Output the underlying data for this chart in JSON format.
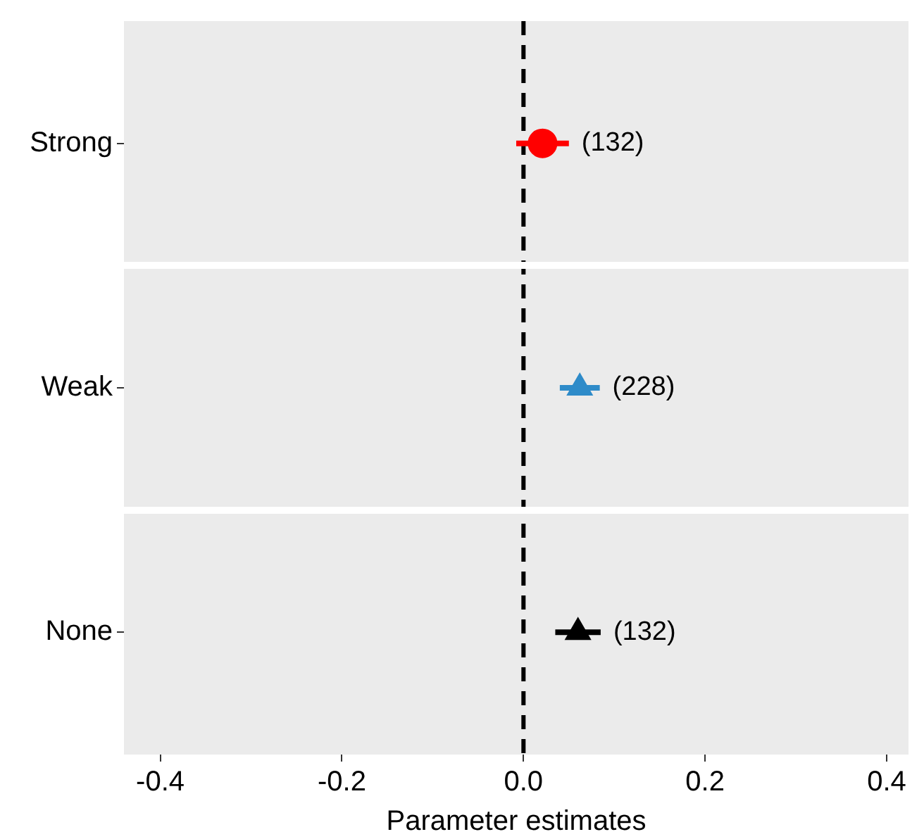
{
  "chart_data": {
    "type": "scatter",
    "orientation": "horizontal",
    "xlabel": "Parameter estimates",
    "categories": [
      "Strong",
      "Weak",
      "None"
    ],
    "series": [
      {
        "color": "#ff0000",
        "marker": "circle",
        "values": [
          0.021,
          null,
          null
        ],
        "errors": [
          [
            -0.008,
            0.05
          ],
          null,
          null
        ]
      },
      {
        "color": "#2e8bc9",
        "marker": "triangle",
        "values": [
          null,
          0.062,
          null
        ],
        "errors": [
          null,
          [
            0.04,
            0.084
          ],
          null
        ]
      },
      {
        "color": "#000000",
        "marker": "triangle",
        "values": [
          null,
          null,
          0.06
        ],
        "errors": [
          null,
          null,
          [
            0.035,
            0.085
          ]
        ]
      }
    ],
    "xlim": [
      -0.44,
      0.424
    ],
    "xticks": [
      {
        "value": -0.4,
        "label": "-0.4"
      },
      {
        "value": -0.2,
        "label": "-0.2"
      },
      {
        "value": 0,
        "label": "0.0"
      },
      {
        "value": 0.2,
        "label": "0.2"
      },
      {
        "value": 0.4,
        "label": "0.4"
      }
    ],
    "ref_lines": [
      {
        "axis": "x",
        "value": 0,
        "color": "#000000",
        "line_style": "dashed"
      }
    ],
    "annotations": [
      "(132)",
      "(228)",
      "(132)"
    ],
    "legend": false
  }
}
